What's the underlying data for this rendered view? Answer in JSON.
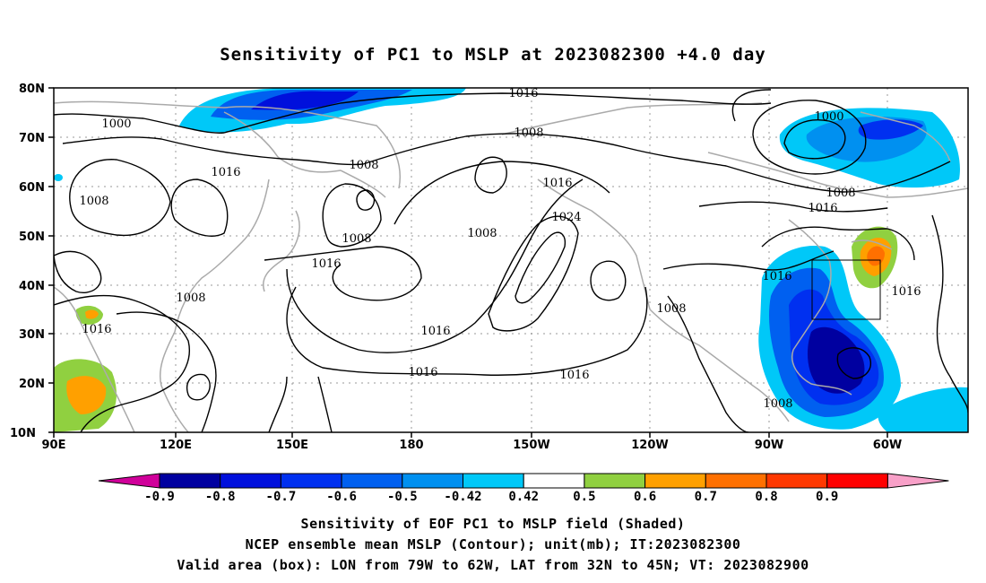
{
  "title": "Sensitivity of PC1 to MSLP at 2023082300 +4.0 day",
  "map": {
    "lat_labels": [
      "80N",
      "70N",
      "60N",
      "50N",
      "40N",
      "30N",
      "20N",
      "10N"
    ],
    "lon_labels": [
      "90E",
      "120E",
      "150E",
      "180",
      "150W",
      "120W",
      "90W",
      "60W"
    ],
    "contour_labels": [
      "1000",
      "1016",
      "1008",
      "1008",
      "1008",
      "1008",
      "1016",
      "1008",
      "1016",
      "1008",
      "1016",
      "1024",
      "1016",
      "1008",
      "1016",
      "1016",
      "1016",
      "1000",
      "1008",
      "1016",
      "1016",
      "1016",
      "1008",
      "1008"
    ],
    "valid_box": {
      "lon_min": -79,
      "lon_max": -62,
      "lat_min": 32,
      "lat_max": 45
    }
  },
  "colorbar": {
    "labels": [
      "-0.9",
      "-0.8",
      "-0.7",
      "-0.6",
      "-0.5",
      "-0.42",
      "0.42",
      "0.5",
      "0.6",
      "0.7",
      "0.8",
      "0.9"
    ],
    "colors": [
      "#0000a0",
      "#0010dc",
      "#0030f0",
      "#0060f0",
      "#0090f0",
      "#00c8f8",
      "#ffffff",
      "#90d040",
      "#ffa000",
      "#ff7000",
      "#ff3800",
      "#ff0000"
    ],
    "low_end_color": "#d0009a",
    "high_end_color": "#f8a0c8"
  },
  "captions": {
    "line1": "Sensitivity of EOF PC1 to MSLP field (Shaded)",
    "line2": "NCEP ensemble mean MSLP (Contour); unit(mb); IT:2023082300",
    "line3": "Valid area (box): LON from 79W to 62W, LAT from 32N to 45N; VT: 2023082900"
  }
}
